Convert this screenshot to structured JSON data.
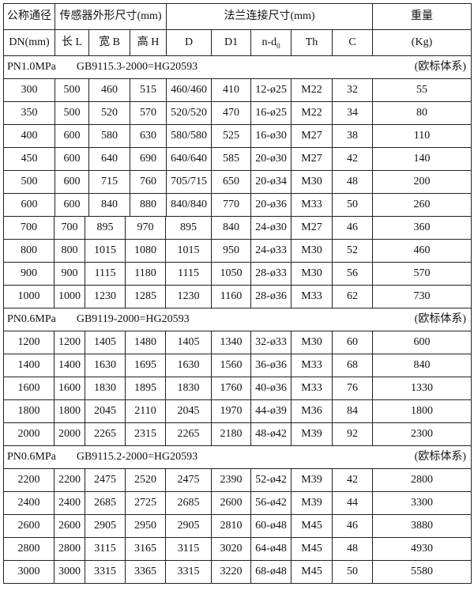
{
  "header": {
    "dn_label": "公称通径",
    "dn_unit": "DN(mm)",
    "sensor_group": "传感器外形尺寸(mm)",
    "flange_group": "法兰连接尺寸(mm)",
    "weight_label": "重量",
    "weight_unit": "(Kg)",
    "columns": [
      "长 L",
      "宽 B",
      "高 H",
      "D",
      "D1",
      "n-d",
      "Th",
      "C"
    ],
    "nd_subscript": "0"
  },
  "sections": [
    {
      "pressure": "PN1.0MPa",
      "standard": "GB9115.3-2000=HG20593",
      "note": "(欧标体系)",
      "rows": [
        [
          "300",
          "500",
          "460",
          "515",
          "460/460",
          "410",
          "12-ø25",
          "M22",
          "32",
          "55"
        ],
        [
          "350",
          "500",
          "520",
          "570",
          "520/520",
          "470",
          "16-ø25",
          "M22",
          "34",
          "80"
        ],
        [
          "400",
          "600",
          "580",
          "630",
          "580/580",
          "525",
          "16-ø30",
          "M27",
          "38",
          "110"
        ],
        [
          "450",
          "600",
          "640",
          "690",
          "640/640",
          "585",
          "20-ø30",
          "M27",
          "42",
          "140"
        ],
        [
          "500",
          "600",
          "715",
          "760",
          "705/715",
          "650",
          "20-ø34",
          "M30",
          "48",
          "200"
        ],
        [
          "600",
          "600",
          "840",
          "880",
          "840/840",
          "770",
          "20-ø36",
          "M33",
          "50",
          "260"
        ],
        [
          "700",
          "700",
          "895",
          "970",
          "895",
          "840",
          "24-ø30",
          "M27",
          "46",
          "360"
        ],
        [
          "800",
          "800",
          "1015",
          "1080",
          "1015",
          "950",
          "24-ø33",
          "M30",
          "52",
          "460"
        ],
        [
          "900",
          "900",
          "1115",
          "1180",
          "1115",
          "1050",
          "28-ø33",
          "M30",
          "56",
          "570"
        ],
        [
          "1000",
          "1000",
          "1230",
          "1285",
          "1230",
          "1160",
          "28-ø36",
          "M33",
          "62",
          "730"
        ]
      ]
    },
    {
      "pressure": "PN0.6MPa",
      "standard": "GB9119-2000=HG20593",
      "note": "(欧标体系)",
      "rows": [
        [
          "1200",
          "1200",
          "1405",
          "1480",
          "1405",
          "1340",
          "32-ø33",
          "M30",
          "60",
          "600"
        ],
        [
          "1400",
          "1400",
          "1630",
          "1695",
          "1630",
          "1560",
          "36-ø36",
          "M33",
          "68",
          "840"
        ],
        [
          "1600",
          "1600",
          "1830",
          "1895",
          "1830",
          "1760",
          "40-ø36",
          "M33",
          "76",
          "1330"
        ],
        [
          "1800",
          "1800",
          "2045",
          "2110",
          "2045",
          "1970",
          "44-ø39",
          "M36",
          "84",
          "1800"
        ],
        [
          "2000",
          "2000",
          "2265",
          "2315",
          "2265",
          "2180",
          "48-ø42",
          "M39",
          "92",
          "2300"
        ]
      ]
    },
    {
      "pressure": "PN0.6MPa",
      "standard": "GB9115.2-2000=HG20593",
      "note": "(欧标体系)",
      "rows": [
        [
          "2200",
          "2200",
          "2475",
          "2520",
          "2475",
          "2390",
          "52-ø42",
          "M39",
          "42",
          "2800"
        ],
        [
          "2400",
          "2400",
          "2685",
          "2725",
          "2685",
          "2600",
          "56-ø42",
          "M39",
          "44",
          "3300"
        ],
        [
          "2600",
          "2600",
          "2905",
          "2950",
          "2905",
          "2810",
          "60-ø48",
          "M45",
          "46",
          "3880"
        ],
        [
          "2800",
          "2800",
          "3115",
          "3165",
          "3115",
          "3020",
          "64-ø48",
          "M45",
          "48",
          "4930"
        ],
        [
          "3000",
          "3000",
          "3315",
          "3365",
          "3315",
          "3220",
          "68-ø48",
          "M45",
          "50",
          "5580"
        ]
      ]
    }
  ]
}
